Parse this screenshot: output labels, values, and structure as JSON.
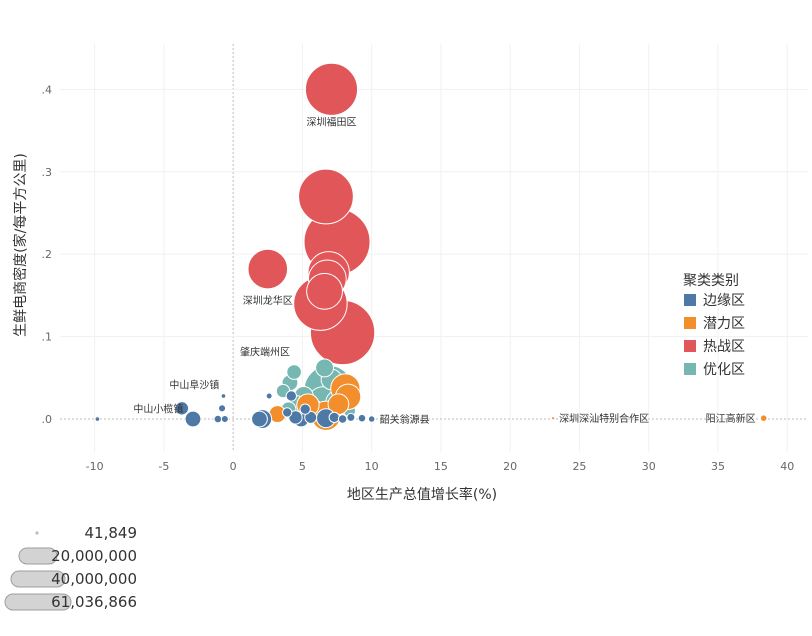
{
  "chart_data": {
    "type": "scatter",
    "title": "",
    "xlabel": "地区生产总值增长率(%)",
    "ylabel": "生鲜电商密度(家/每平方公里)",
    "xlim": [
      -12.5,
      41.5
    ],
    "ylim": [
      -0.04,
      0.455
    ],
    "x_ticks": [
      "-10",
      "-5",
      "0",
      "5",
      "10",
      "15",
      "20",
      "25",
      "30",
      "35",
      "40"
    ],
    "y_ticks": [
      ".0",
      ".1",
      ".2",
      ".3",
      ".4"
    ],
    "x_tick_values": [
      -10,
      -5,
      0,
      5,
      10,
      15,
      20,
      25,
      30,
      35,
      40
    ],
    "y_tick_values": [
      0,
      0.1,
      0.2,
      0.3,
      0.4
    ],
    "grid": true,
    "legend": {
      "title": "聚类类别",
      "placement": "right",
      "items": [
        {
          "name": "边缘区",
          "color": "#4e79a7"
        },
        {
          "name": "潜力区",
          "color": "#f28e2b"
        },
        {
          "name": "热战区",
          "color": "#e15759"
        },
        {
          "name": "优化区",
          "color": "#76b7b2"
        }
      ]
    },
    "size_legend": {
      "items": [
        {
          "label": "41,849",
          "value": 41849
        },
        {
          "label": "20,000,000",
          "value": 20000000
        },
        {
          "label": "40,000,000",
          "value": 40000000
        },
        {
          "label": "61,036,866",
          "value": 61036866
        }
      ]
    },
    "series": [
      {
        "name": "热战区",
        "color": "#e15759",
        "points": [
          {
            "x": 7.1,
            "y": 0.4,
            "size": 38000000
          },
          {
            "x": 6.7,
            "y": 0.27,
            "size": 42000000
          },
          {
            "x": 7.5,
            "y": 0.215,
            "size": 61036866
          },
          {
            "x": 2.5,
            "y": 0.182,
            "size": 22000000
          },
          {
            "x": 6.9,
            "y": 0.178,
            "size": 24000000
          },
          {
            "x": 6.8,
            "y": 0.17,
            "size": 20000000
          },
          {
            "x": 6.6,
            "y": 0.155,
            "size": 18000000
          },
          {
            "x": 6.3,
            "y": 0.14,
            "size": 40000000
          },
          {
            "x": 7.9,
            "y": 0.105,
            "size": 58000000
          }
        ]
      },
      {
        "name": "优化区",
        "color": "#76b7b2",
        "points": [
          {
            "x": 6.6,
            "y": 0.062,
            "size": 4500000
          },
          {
            "x": 4.4,
            "y": 0.057,
            "size": 3000000
          },
          {
            "x": 7.1,
            "y": 0.048,
            "size": 6000000
          },
          {
            "x": 4.1,
            "y": 0.044,
            "size": 3500000
          },
          {
            "x": 6.9,
            "y": 0.035,
            "size": 34000000
          },
          {
            "x": 3.6,
            "y": 0.034,
            "size": 2500000
          },
          {
            "x": 5.1,
            "y": 0.028,
            "size": 5000000
          },
          {
            "x": 6.5,
            "y": 0.02,
            "size": 14000000
          },
          {
            "x": 7.6,
            "y": 0.02,
            "size": 9000000
          },
          {
            "x": 4.6,
            "y": 0.018,
            "size": 4000000
          },
          {
            "x": 5.8,
            "y": 0.012,
            "size": 5000000
          },
          {
            "x": 4.0,
            "y": 0.012,
            "size": 3000000
          },
          {
            "x": 8.4,
            "y": 0.01,
            "size": 2000000
          }
        ]
      },
      {
        "name": "潜力区",
        "color": "#f28e2b",
        "points": [
          {
            "x": 8.1,
            "y": 0.037,
            "size": 12000000
          },
          {
            "x": 8.3,
            "y": 0.027,
            "size": 9000000
          },
          {
            "x": 5.4,
            "y": 0.017,
            "size": 7000000
          },
          {
            "x": 7.6,
            "y": 0.018,
            "size": 6000000
          },
          {
            "x": 3.2,
            "y": 0.006,
            "size": 4000000
          },
          {
            "x": 6.7,
            "y": 0.004,
            "size": 12000000
          },
          {
            "x": 23.1,
            "y": 0.001,
            "size": 41849
          },
          {
            "x": 38.3,
            "y": 0.001,
            "size": 600000
          }
        ]
      },
      {
        "name": "边缘区",
        "color": "#4e79a7",
        "points": [
          {
            "x": -9.8,
            "y": 0.0,
            "size": 300000
          },
          {
            "x": -3.7,
            "y": 0.013,
            "size": 2500000
          },
          {
            "x": -2.9,
            "y": 0.0,
            "size": 3500000
          },
          {
            "x": -0.7,
            "y": 0.028,
            "size": 300000
          },
          {
            "x": -0.8,
            "y": 0.013,
            "size": 700000
          },
          {
            "x": -1.1,
            "y": 0.0,
            "size": 800000
          },
          {
            "x": -0.6,
            "y": 0.0,
            "size": 700000
          },
          {
            "x": 1.9,
            "y": 0.0,
            "size": 3500000
          },
          {
            "x": 2.1,
            "y": 0.0,
            "size": 5000000
          },
          {
            "x": 2.6,
            "y": 0.028,
            "size": 500000
          },
          {
            "x": 3.9,
            "y": 0.008,
            "size": 1200000
          },
          {
            "x": 4.2,
            "y": 0.028,
            "size": 1500000
          },
          {
            "x": 4.5,
            "y": 0.002,
            "size": 2500000
          },
          {
            "x": 4.9,
            "y": 0.0,
            "size": 3500000
          },
          {
            "x": 5.2,
            "y": 0.012,
            "size": 1500000
          },
          {
            "x": 5.6,
            "y": 0.002,
            "size": 2000000
          },
          {
            "x": 6.7,
            "y": 0.001,
            "size": 5000000
          },
          {
            "x": 7.3,
            "y": 0.002,
            "size": 1500000
          },
          {
            "x": 7.9,
            "y": 0.0,
            "size": 1000000
          },
          {
            "x": 8.5,
            "y": 0.002,
            "size": 900000
          },
          {
            "x": 9.3,
            "y": 0.001,
            "size": 800000
          },
          {
            "x": 10.0,
            "y": 0.0,
            "size": 600000
          }
        ]
      }
    ],
    "annotations": [
      {
        "text": "深圳福田区",
        "x": 7.1,
        "y": 0.4,
        "anchor": "middle",
        "dx": 0,
        "dy": 36
      },
      {
        "text": "深圳龙华区",
        "x": 2.5,
        "y": 0.182,
        "anchor": "middle",
        "dx": 0,
        "dy": 35
      },
      {
        "text": "肇庆端州区",
        "x": 2.3,
        "y": 0.082,
        "anchor": "middle",
        "dx": 0,
        "dy": 4
      },
      {
        "text": "中山阜沙镇",
        "x": -2.8,
        "y": 0.042,
        "anchor": "middle",
        "dx": 0,
        "dy": 4
      },
      {
        "text": "中山小榄镇",
        "x": -5.4,
        "y": 0.013,
        "anchor": "middle",
        "dx": 0,
        "dy": 4
      },
      {
        "text": "韶关翁源县",
        "x": 10.0,
        "y": 0.0,
        "anchor": "start",
        "dx": 8,
        "dy": 4
      },
      {
        "text": "深圳深汕特别合作区",
        "x": 23.1,
        "y": 0.001,
        "anchor": "start",
        "dx": 6,
        "dy": 4
      },
      {
        "text": "阳江高新区",
        "x": 38.3,
        "y": 0.001,
        "anchor": "end",
        "dx": -8,
        "dy": 4
      }
    ]
  }
}
